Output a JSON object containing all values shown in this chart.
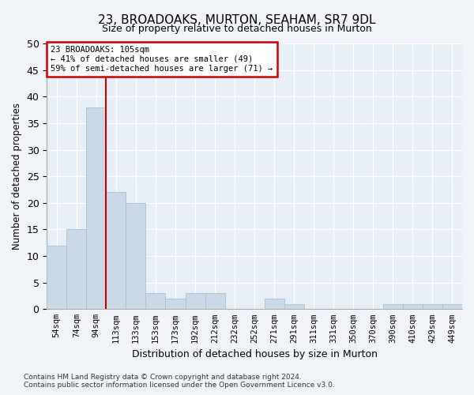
{
  "title": "23, BROADOAKS, MURTON, SEAHAM, SR7 9DL",
  "subtitle": "Size of property relative to detached houses in Murton",
  "xlabel": "Distribution of detached houses by size in Murton",
  "ylabel": "Number of detached properties",
  "bar_labels": [
    "54sqm",
    "74sqm",
    "94sqm",
    "113sqm",
    "133sqm",
    "153sqm",
    "173sqm",
    "192sqm",
    "212sqm",
    "232sqm",
    "252sqm",
    "271sqm",
    "291sqm",
    "311sqm",
    "331sqm",
    "350sqm",
    "370sqm",
    "390sqm",
    "410sqm",
    "429sqm",
    "449sqm"
  ],
  "bar_values": [
    12,
    15,
    38,
    22,
    20,
    3,
    2,
    3,
    3,
    0,
    0,
    2,
    1,
    0,
    0,
    0,
    0,
    1,
    1,
    1,
    1
  ],
  "bar_color": "#c9d9e8",
  "bar_edge_color": "#a8bfcf",
  "ref_line_color": "#cc0000",
  "annotation_box_color": "#ffffff",
  "annotation_box_edge_color": "#cc0000",
  "annotation_title": "23 BROADOAKS: 105sqm",
  "annotation_line1": "← 41% of detached houses are smaller (49)",
  "annotation_line2": "59% of semi-detached houses are larger (71) →",
  "ylim": [
    0,
    50
  ],
  "yticks": [
    0,
    5,
    10,
    15,
    20,
    25,
    30,
    35,
    40,
    45,
    50
  ],
  "footer_line1": "Contains HM Land Registry data © Crown copyright and database right 2024.",
  "footer_line2": "Contains public sector information licensed under the Open Government Licence v3.0.",
  "fig_bg_color": "#f0f4f8",
  "plot_bg_color": "#e8eef5"
}
